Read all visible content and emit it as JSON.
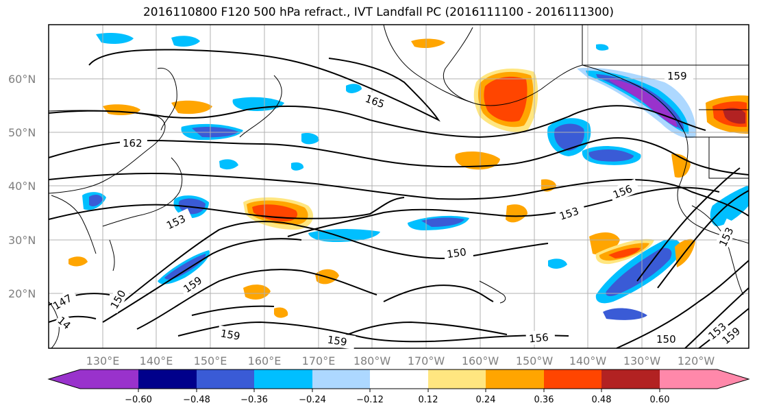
{
  "title": "2016110800 F120 500 hPa refract., IVT Landfall PC (2016111100 - 2016111300)",
  "lat_labels": [
    "60°N",
    "50°N",
    "40°N",
    "30°N",
    "20°N"
  ],
  "lon_labels": [
    "130°E",
    "140°E",
    "150°E",
    "160°E",
    "170°E",
    "180°W",
    "170°W",
    "160°W",
    "150°W",
    "140°W",
    "130°W",
    "120°W"
  ],
  "contour_labels": [
    "165",
    "162",
    "159",
    "156",
    "153",
    "153",
    "150",
    "150",
    "159",
    "159",
    "156",
    "150",
    "153",
    "159",
    "147",
    "14",
    "153",
    "159"
  ],
  "colorbar": {
    "ticks": [
      "−0.60",
      "−0.48",
      "−0.36",
      "−0.24",
      "−0.12",
      "0.12",
      "0.24",
      "0.36",
      "0.48",
      "0.60"
    ],
    "colors": [
      "#9932cc",
      "#00008b",
      "#3a5bd6",
      "#00bfff",
      "#add8ff",
      "#ffffff",
      "#ffe680",
      "#ffa500",
      "#ff4500",
      "#b22222",
      "#ff88aa"
    ]
  },
  "shading_colors": {
    "neg_strong": "#9932cc",
    "neg_dark": "#00008b",
    "neg_mid": "#3a5bd6",
    "neg_light": "#00bfff",
    "neg_pale": "#add8ff",
    "pos_pale": "#ffe680",
    "pos_light": "#ffa500",
    "pos_mid": "#ff4500",
    "pos_dark": "#b22222"
  }
}
